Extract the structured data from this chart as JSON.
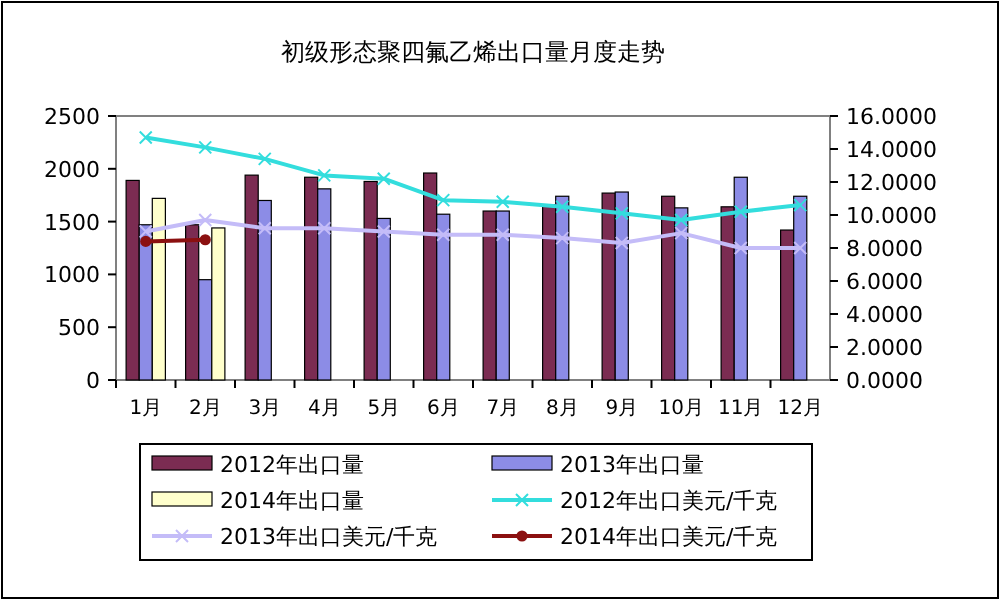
{
  "chart_data": {
    "type": "bar",
    "title": "初级形态聚四氟乙烯出口量月度走势",
    "categories": [
      "1月",
      "2月",
      "3月",
      "4月",
      "5月",
      "6月",
      "7月",
      "8月",
      "9月",
      "10月",
      "11月",
      "12月"
    ],
    "series": [
      {
        "name": "2012年出口量",
        "color": "#7b2c52",
        "values": [
          1890,
          1470,
          1940,
          1920,
          1880,
          1960,
          1600,
          1660,
          1770,
          1740,
          1640,
          1420
        ]
      },
      {
        "name": "2013年出口量",
        "color": "#8c8ce6",
        "values": [
          1470,
          950,
          1700,
          1810,
          1530,
          1570,
          1600,
          1740,
          1780,
          1630,
          1920,
          1740
        ]
      },
      {
        "name": "2014年出口量",
        "color": "#ffffcc",
        "values": [
          1720,
          1440,
          null,
          null,
          null,
          null,
          null,
          null,
          null,
          null,
          null,
          null
        ]
      },
      {
        "name": "2012年出口美元/千克",
        "type": "line",
        "axis": "y2",
        "marker": "cross",
        "color": "#33dddd",
        "values": [
          14.7,
          14.1,
          13.4,
          12.4,
          12.2,
          10.9,
          10.8,
          10.5,
          10.1,
          9.7,
          10.2,
          10.6
        ]
      },
      {
        "name": "2013年出口美元/千克",
        "type": "line",
        "axis": "y2",
        "marker": "cross",
        "color": "#c4bcf8",
        "values": [
          9.0,
          9.7,
          9.2,
          9.2,
          9.0,
          8.8,
          8.8,
          8.6,
          8.3,
          8.9,
          8.0,
          8.0
        ]
      },
      {
        "name": "2014年出口美元/千克",
        "type": "line",
        "axis": "y2",
        "marker": "circle",
        "color": "#8b1010",
        "values": [
          8.4,
          8.5,
          null,
          null,
          null,
          null,
          null,
          null,
          null,
          null,
          null,
          null
        ]
      }
    ],
    "ylim": [
      0,
      2500
    ],
    "yticks": [
      0,
      500,
      1000,
      1500,
      2000,
      2500
    ],
    "y2lim": [
      0,
      16
    ],
    "y2ticks": [
      {
        "value": 0,
        "label": "0.0000"
      },
      {
        "value": 2,
        "label": "2.0000"
      },
      {
        "value": 4,
        "label": "4.0000"
      },
      {
        "value": 6,
        "label": "6.0000"
      },
      {
        "value": 8,
        "label": "8.0000"
      },
      {
        "value": 10,
        "label": "10.0000"
      },
      {
        "value": 12,
        "label": "12.0000"
      },
      {
        "value": 14,
        "label": "14.0000"
      },
      {
        "value": 16,
        "label": "16.0000"
      }
    ],
    "legend": "bottom"
  }
}
